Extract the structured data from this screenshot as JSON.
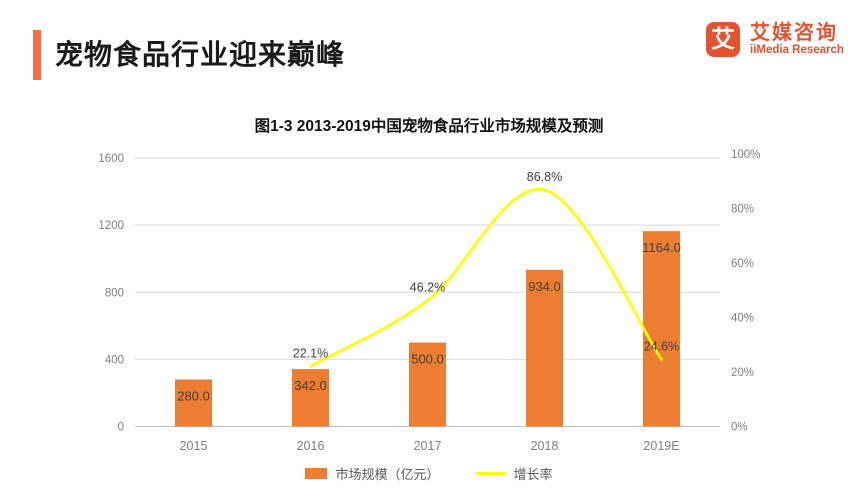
{
  "header": {
    "title": "宠物食品行业迎来巅峰",
    "accent_color": "#F96B45"
  },
  "brand": {
    "logo_char": "艾",
    "name_cn": "艾媒咨询",
    "name_en": "iiMedia Research",
    "color": "#E4532F"
  },
  "chart_data": {
    "type": "bar",
    "title": "图1-3  2013-2019中国宠物食品行业市场规模及预测",
    "categories": [
      "2015",
      "2016",
      "2017",
      "2018",
      "2019E"
    ],
    "series": [
      {
        "name": "市场规模（亿元）",
        "type": "bar",
        "axis": "left",
        "color": "#ED7D31",
        "values": [
          280.0,
          342.0,
          500.0,
          934.0,
          1164.0
        ],
        "data_labels": [
          "280.0",
          "342.0",
          "500.0",
          "934.0",
          "1164.0"
        ]
      },
      {
        "name": "增长率",
        "type": "line",
        "axis": "right",
        "color": "#FFFF00",
        "values": [
          null,
          22.1,
          46.2,
          86.8,
          24.6
        ],
        "data_labels": [
          null,
          "22.1%",
          "46.2%",
          "86.8%",
          "24.6%"
        ]
      }
    ],
    "left_axis": {
      "min": 0,
      "max": 1600,
      "tick_values": [
        0,
        400,
        800,
        1200,
        1600
      ],
      "tick_labels": [
        "0",
        "400",
        "800",
        "1200",
        "1600"
      ]
    },
    "right_axis": {
      "min": 0,
      "max": 100,
      "tick_values": [
        0,
        20,
        40,
        60,
        80,
        100
      ],
      "tick_labels": [
        "0%",
        "20%",
        "40%",
        "60%",
        "80%",
        "100%"
      ]
    },
    "grid": true,
    "legend_position": "bottom",
    "colors": {
      "grid": "#D9D9D9",
      "axis_line": "#BFBFBF",
      "tick_text": "#7F7F7F",
      "data_label_text": "#404040",
      "legend_text": "#595959"
    }
  }
}
